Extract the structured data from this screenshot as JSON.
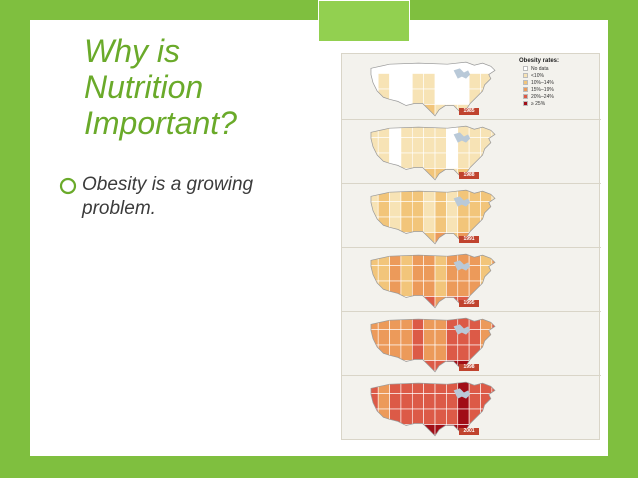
{
  "slide": {
    "title_lines": [
      "Why is",
      "Nutrition",
      "Important?"
    ],
    "bullet_text": "Obesity is a growing problem."
  },
  "figure": {
    "legend_title": "Obesity rates:",
    "legend": [
      {
        "label": "No data",
        "color": "#ffffff"
      },
      {
        "label": "<10%",
        "color": "#f7e3b5"
      },
      {
        "label": "10%–14%",
        "color": "#f2c57a"
      },
      {
        "label": "15%–19%",
        "color": "#ec9a5a"
      },
      {
        "label": "20%–24%",
        "color": "#dc5a47"
      },
      {
        "label": "≥ 25%",
        "color": "#a10d16"
      }
    ],
    "panels": [
      {
        "year": "1985"
      },
      {
        "year": "1988"
      },
      {
        "year": "1991"
      },
      {
        "year": "1995"
      },
      {
        "year": "1998"
      },
      {
        "year": "2001"
      }
    ]
  },
  "colors": {
    "title": "#6aaa2a",
    "border": "#92d050"
  }
}
